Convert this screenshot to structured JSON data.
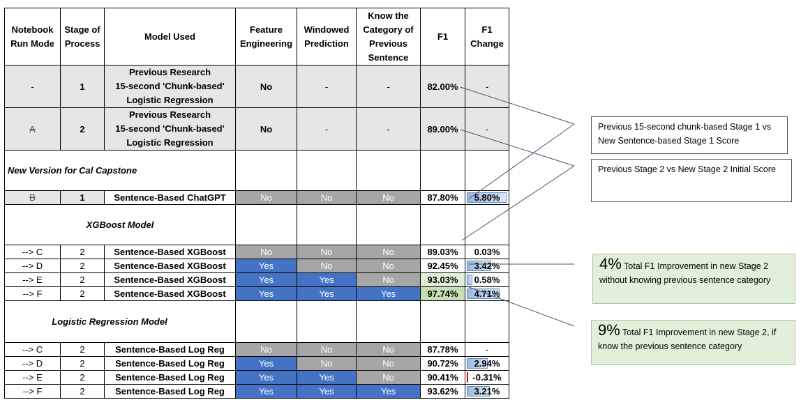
{
  "headers": [
    "Notebook Run Mode",
    "Stage of Process",
    "Model Used",
    "Feature Engineering",
    "Windowed Prediction",
    "Know the Category of Previous Sentence",
    "F1",
    "F1 Change"
  ],
  "rows_top": [
    {
      "mode": "-",
      "stage": "1",
      "model_lines": [
        "Previous Research",
        "15-second 'Chunk-based'",
        "Logistic Regression"
      ],
      "feat": "No",
      "win": "-",
      "know": "-",
      "f1": "82.00%",
      "chg": "-"
    },
    {
      "mode": "A",
      "stage": "2",
      "model_lines": [
        "Previous Research",
        "15-second 'Chunk-based'",
        "Logistic Regression"
      ],
      "feat": "No",
      "win": "-",
      "know": "-",
      "f1": "89.00%",
      "chg": "-"
    }
  ],
  "section_new": "New Version for Cal Capstone",
  "row_b": {
    "mode": "B",
    "stage": "1",
    "model": "Sentence-Based ChatGPT",
    "feat": "No",
    "win": "No",
    "know": "No",
    "f1": "87.80%",
    "chg": "5.80%"
  },
  "section_xgb": "XGBoost Model",
  "rows_xgb": [
    {
      "mode": "--> C",
      "stage": "2",
      "model": "Sentence-Based XGBoost",
      "feat": "No",
      "win": "No",
      "know": "No",
      "f1": "89.03%",
      "chg": "0.03%"
    },
    {
      "mode": "--> D",
      "stage": "2",
      "model": "Sentence-Based XGBoost",
      "feat": "Yes",
      "win": "No",
      "know": "No",
      "f1": "92.45%",
      "chg": "3.42%"
    },
    {
      "mode": "--> E",
      "stage": "2",
      "model": "Sentence-Based XGBoost",
      "feat": "Yes",
      "win": "Yes",
      "know": "No",
      "f1": "93.03%",
      "chg": "0.58%"
    },
    {
      "mode": "--> F",
      "stage": "2",
      "model": "Sentence-Based XGBoost",
      "feat": "Yes",
      "win": "Yes",
      "know": "Yes",
      "f1": "97.74%",
      "chg": "4.71%"
    }
  ],
  "section_lr": "Logistic Regression Model",
  "rows_lr": [
    {
      "mode": "--> C",
      "stage": "2",
      "model": "Sentence-Based Log Reg",
      "feat": "No",
      "win": "No",
      "know": "No",
      "f1": "87.78%",
      "chg": "-"
    },
    {
      "mode": "--> D",
      "stage": "2",
      "model": "Sentence-Based Log Reg",
      "feat": "Yes",
      "win": "No",
      "know": "No",
      "f1": "90.72%",
      "chg": "2.94%"
    },
    {
      "mode": "--> E",
      "stage": "2",
      "model": "Sentence-Based Log Reg",
      "feat": "Yes",
      "win": "Yes",
      "know": "No",
      "f1": "90.41%",
      "chg": "-0.31%"
    },
    {
      "mode": "--> F",
      "stage": "2",
      "model": "Sentence-Based Log Reg",
      "feat": "Yes",
      "win": "Yes",
      "know": "Yes",
      "f1": "93.62%",
      "chg": "3.21%"
    }
  ],
  "notes": {
    "stage1": "Previous 15-second chunk-based Stage 1 vs New Sentence-based Stage 1 Score",
    "stage2": "Previous Stage 2 vs New Stage 2 Initial Score",
    "xgb_num": "4%",
    "xgb_text": "Total F1 Improvement in new Stage 2 without knowing previous sentence category",
    "lr_num": "9%",
    "lr_text": "Total F1 Improvement in new Stage 2, if know the previous sentence category"
  },
  "colors": {
    "no_cell": "#a6a6a6",
    "yes_cell": "#4472c4",
    "gray_row": "#e6e6e6",
    "green_note": "#e2efda"
  }
}
